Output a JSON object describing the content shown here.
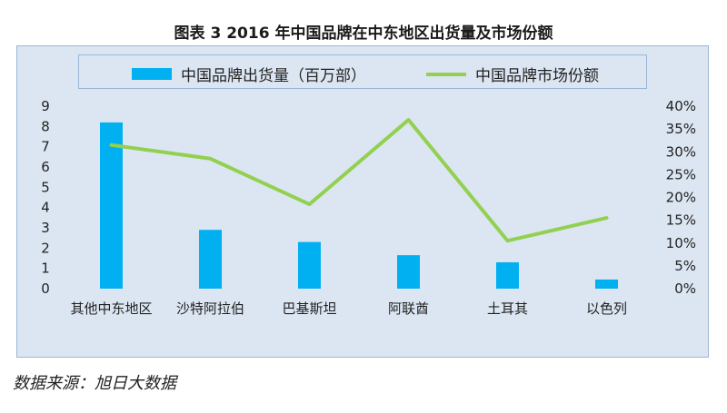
{
  "title": "图表 3    2016 年中国品牌在中东地区出货量及市场份额",
  "source": "数据来源：旭日大数据",
  "colors": {
    "bar": "#00b0f0",
    "line": "#92d050",
    "panel": "#dce6f2"
  },
  "chart_data": {
    "type": "bar+line",
    "categories": [
      "其他中东地区",
      "沙特阿拉伯",
      "巴基斯坦",
      "阿联酋",
      "土耳其",
      "以色列"
    ],
    "series": [
      {
        "name": "中国品牌出货量（百万部）",
        "type": "bar",
        "axis": "left",
        "values": [
          8.2,
          2.9,
          2.3,
          1.65,
          1.3,
          0.45
        ]
      },
      {
        "name": "中国品牌市场份额",
        "type": "line",
        "axis": "right",
        "values": [
          31.5,
          28.5,
          18.5,
          37.0,
          10.5,
          15.5
        ]
      }
    ],
    "left_axis": {
      "ylim": [
        0,
        9
      ],
      "ticks": [
        "0",
        "1",
        "2",
        "3",
        "4",
        "5",
        "6",
        "7",
        "8",
        "9"
      ]
    },
    "right_axis": {
      "ylim": [
        0,
        40
      ],
      "ticks": [
        "0%",
        "5%",
        "10%",
        "15%",
        "20%",
        "25%",
        "30%",
        "35%",
        "40%"
      ]
    },
    "legend_position": "top",
    "grid": false
  }
}
